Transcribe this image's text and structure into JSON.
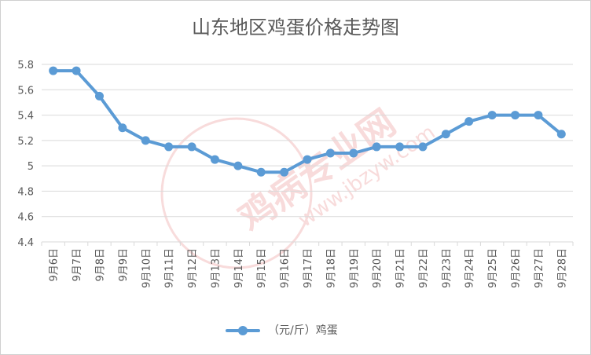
{
  "chart_data": {
    "type": "line",
    "title": "山东地区鸡蛋价格走势图",
    "categories": [
      "9月6日",
      "9月7日",
      "9月8日",
      "9月9日",
      "9月10日",
      "9月11日",
      "9月12日",
      "9月13日",
      "9月14日",
      "9月15日",
      "9月16日",
      "9月17日",
      "9月18日",
      "9月19日",
      "9月20日",
      "9月21日",
      "9月22日",
      "9月23日",
      "9月24日",
      "9月25日",
      "9月26日",
      "9月27日",
      "9月28日"
    ],
    "series": [
      {
        "name": "（元/斤）鸡蛋",
        "color": "#5b9bd5",
        "values": [
          5.75,
          5.75,
          5.55,
          5.3,
          5.2,
          5.15,
          5.15,
          5.05,
          5.0,
          4.95,
          4.95,
          5.05,
          5.1,
          5.1,
          5.15,
          5.15,
          5.15,
          5.25,
          5.35,
          5.4,
          5.4,
          5.4,
          5.25
        ]
      }
    ],
    "ylim": [
      4.4,
      5.8
    ],
    "yticks": [
      "4.4",
      "4.6",
      "4.8",
      "5",
      "5.2",
      "5.4",
      "5.6",
      "5.8"
    ],
    "grid": true,
    "legend": "bottom",
    "xlabel": "",
    "ylabel": ""
  },
  "watermark": {
    "text": "鸡病专业网",
    "url": "www.jbzyw.com",
    "color": "#e8a8a8"
  }
}
